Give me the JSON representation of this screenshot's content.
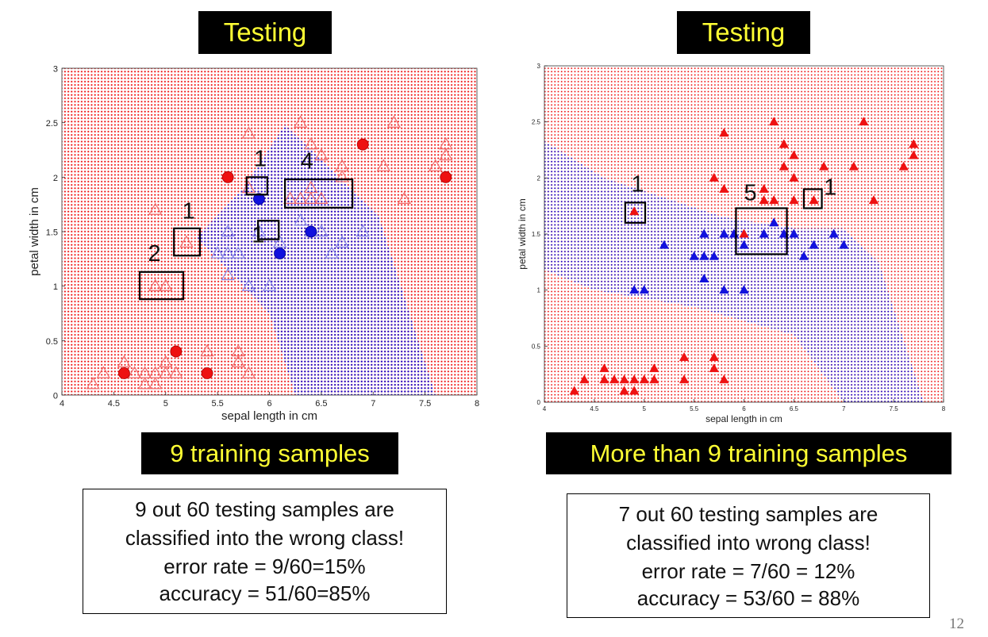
{
  "left_panel": {
    "title": "Testing",
    "caption": "9 training samples",
    "note_lines": [
      "9 out 60 testing samples are",
      "classified into the wrong class!",
      "error rate = 9/60=15%",
      "accuracy = 51/60=85%"
    ]
  },
  "right_panel": {
    "title": "Testing",
    "caption": "More than 9 training samples",
    "note_lines": [
      "7 out 60 testing samples are",
      "classified into wrong class!",
      "error rate = 7/60 = 12%",
      "accuracy = 53/60 = 88%"
    ]
  },
  "page_number": "12",
  "colors": {
    "red": "#ee1111",
    "blue": "#1111dd",
    "title_bg": "#000000",
    "title_text": "#ffff33"
  },
  "chart_data": [
    {
      "type": "scatter",
      "xlabel": "sepal length in cm",
      "ylabel": "petal width in cm",
      "xlim": [
        4,
        8
      ],
      "ylim": [
        0,
        3
      ],
      "xticks": [
        "4",
        "4.5",
        "5",
        "5.5",
        "6",
        "6.5",
        "7",
        "7.5",
        "8"
      ],
      "yticks": [
        "0",
        "0.5",
        "1",
        "1.5",
        "2",
        "2.5",
        "3"
      ],
      "blue_region": [
        [
          6.15,
          2.48
        ],
        [
          7.05,
          1.65
        ],
        [
          7.6,
          0
        ],
        [
          6.25,
          0
        ],
        [
          6.0,
          0.75
        ],
        [
          5.3,
          1.45
        ],
        [
          5.75,
          1.9
        ]
      ],
      "training_red": [
        [
          4.6,
          0.2
        ],
        [
          5.1,
          0.4
        ],
        [
          5.4,
          0.2
        ],
        [
          5.6,
          2.0
        ],
        [
          6.9,
          2.3
        ],
        [
          7.7,
          2.0
        ]
      ],
      "training_blue": [
        [
          5.9,
          1.8
        ],
        [
          6.1,
          1.3
        ],
        [
          6.4,
          1.5
        ]
      ],
      "testing_red": [
        [
          4.3,
          0.1
        ],
        [
          4.4,
          0.2
        ],
        [
          4.6,
          0.3
        ],
        [
          4.7,
          0.2
        ],
        [
          4.8,
          0.1
        ],
        [
          4.8,
          0.2
        ],
        [
          4.9,
          0.1
        ],
        [
          4.9,
          0.2
        ],
        [
          5.0,
          0.2
        ],
        [
          5.0,
          0.3
        ],
        [
          5.1,
          0.2
        ],
        [
          5.4,
          0.4
        ],
        [
          5.7,
          0.4
        ],
        [
          5.7,
          0.3
        ],
        [
          5.8,
          0.2
        ],
        [
          4.9,
          1.7
        ],
        [
          5.2,
          1.4
        ],
        [
          4.9,
          1.0
        ],
        [
          5.0,
          1.0
        ],
        [
          5.8,
          1.9
        ],
        [
          5.8,
          2.4
        ],
        [
          6.2,
          1.8
        ],
        [
          6.3,
          1.8
        ],
        [
          6.4,
          1.8
        ],
        [
          6.5,
          1.8
        ],
        [
          6.3,
          2.5
        ],
        [
          6.4,
          2.3
        ],
        [
          6.5,
          2.2
        ],
        [
          6.7,
          2.1
        ],
        [
          6.4,
          1.9
        ],
        [
          7.2,
          2.5
        ],
        [
          7.1,
          2.1
        ],
        [
          7.3,
          1.8
        ],
        [
          7.7,
          2.3
        ],
        [
          7.6,
          2.1
        ],
        [
          7.7,
          2.2
        ],
        [
          6.7,
          2.0
        ]
      ],
      "testing_blue": [
        [
          5.5,
          1.3
        ],
        [
          5.6,
          1.3
        ],
        [
          5.7,
          1.3
        ],
        [
          5.6,
          1.5
        ],
        [
          5.6,
          1.1
        ],
        [
          5.8,
          1.0
        ],
        [
          6.0,
          1.0
        ],
        [
          6.1,
          1.4
        ],
        [
          6.3,
          1.6
        ],
        [
          6.4,
          1.5
        ],
        [
          6.5,
          1.5
        ],
        [
          6.6,
          1.3
        ],
        [
          6.7,
          1.4
        ],
        [
          6.9,
          1.5
        ],
        [
          5.9,
          1.5
        ]
      ],
      "annotations": [
        {
          "label": "1",
          "box": [
            5.78,
            5.98,
            1.84,
            2.0
          ],
          "label_at": [
            5.85,
            2.1
          ]
        },
        {
          "label": "4",
          "box": [
            6.15,
            6.8,
            1.72,
            1.98
          ],
          "label_at": [
            6.3,
            2.08
          ]
        },
        {
          "label": "1",
          "box": [
            5.08,
            5.33,
            1.28,
            1.53
          ],
          "label_at": [
            5.16,
            1.62
          ]
        },
        {
          "label": "1",
          "box": [
            5.89,
            6.09,
            1.43,
            1.6
          ],
          "label_at": [
            5.83,
            1.4
          ]
        },
        {
          "label": "2",
          "box": [
            4.75,
            5.17,
            0.88,
            1.13
          ],
          "label_at": [
            4.83,
            1.23
          ]
        }
      ]
    },
    {
      "type": "scatter",
      "xlabel": "sepal length in cm",
      "ylabel": "petal width in cm",
      "xlim": [
        4,
        8
      ],
      "ylim": [
        0,
        3
      ],
      "xticks": [
        "4",
        "4.5",
        "5",
        "5.5",
        "6",
        "6.5",
        "7",
        "7.5",
        "8"
      ],
      "yticks": [
        "0",
        "0.5",
        "1",
        "1.5",
        "2",
        "2.5",
        "3"
      ],
      "blue_region": [
        [
          4.0,
          2.33
        ],
        [
          4.6,
          2.0
        ],
        [
          5.8,
          1.65
        ],
        [
          6.5,
          1.55
        ],
        [
          7.0,
          1.55
        ],
        [
          7.35,
          1.25
        ],
        [
          7.8,
          0
        ],
        [
          7.0,
          0
        ],
        [
          6.5,
          0.6
        ],
        [
          5.5,
          0.85
        ],
        [
          4.5,
          1.0
        ],
        [
          4.0,
          1.18
        ]
      ],
      "testing_red": [
        [
          4.3,
          0.1
        ],
        [
          4.4,
          0.2
        ],
        [
          4.6,
          0.2
        ],
        [
          4.6,
          0.3
        ],
        [
          4.7,
          0.2
        ],
        [
          4.8,
          0.2
        ],
        [
          4.8,
          0.1
        ],
        [
          4.9,
          0.1
        ],
        [
          4.9,
          0.2
        ],
        [
          5.0,
          0.2
        ],
        [
          5.1,
          0.2
        ],
        [
          5.1,
          0.3
        ],
        [
          5.4,
          0.2
        ],
        [
          5.4,
          0.4
        ],
        [
          5.7,
          0.4
        ],
        [
          5.7,
          0.3
        ],
        [
          5.8,
          0.2
        ],
        [
          4.9,
          1.7
        ],
        [
          6.0,
          1.5
        ],
        [
          6.7,
          1.8
        ],
        [
          5.8,
          2.4
        ],
        [
          5.7,
          2.0
        ],
        [
          5.8,
          1.9
        ],
        [
          6.2,
          1.8
        ],
        [
          6.3,
          1.8
        ],
        [
          6.5,
          1.8
        ],
        [
          6.2,
          1.9
        ],
        [
          6.3,
          2.5
        ],
        [
          6.4,
          2.3
        ],
        [
          6.4,
          2.1
        ],
        [
          6.5,
          2.0
        ],
        [
          6.5,
          2.2
        ],
        [
          6.8,
          2.1
        ],
        [
          7.1,
          2.1
        ],
        [
          7.2,
          2.5
        ],
        [
          7.3,
          1.8
        ],
        [
          7.6,
          2.1
        ],
        [
          7.7,
          2.2
        ],
        [
          7.7,
          2.3
        ]
      ],
      "testing_blue": [
        [
          4.9,
          1.0
        ],
        [
          5.0,
          1.0
        ],
        [
          5.2,
          1.4
        ],
        [
          5.5,
          1.3
        ],
        [
          5.6,
          1.3
        ],
        [
          5.7,
          1.3
        ],
        [
          5.6,
          1.5
        ],
        [
          5.6,
          1.1
        ],
        [
          5.8,
          1.0
        ],
        [
          6.0,
          1.0
        ],
        [
          5.8,
          1.5
        ],
        [
          6.0,
          1.4
        ],
        [
          6.2,
          1.5
        ],
        [
          6.3,
          1.6
        ],
        [
          6.4,
          1.5
        ],
        [
          6.5,
          1.5
        ],
        [
          6.6,
          1.3
        ],
        [
          6.7,
          1.4
        ],
        [
          6.9,
          1.5
        ],
        [
          7.0,
          1.4
        ],
        [
          5.9,
          1.5
        ]
      ],
      "annotations": [
        {
          "label": "1",
          "box": [
            4.81,
            5.01,
            1.6,
            1.78
          ],
          "label_at": [
            4.87,
            1.88
          ]
        },
        {
          "label": "5",
          "box": [
            5.92,
            6.43,
            1.32,
            1.73
          ],
          "label_at": [
            6.0,
            1.8
          ]
        },
        {
          "label": "1",
          "box": [
            6.6,
            6.78,
            1.73,
            1.9
          ],
          "label_at": [
            6.8,
            1.85
          ]
        }
      ]
    }
  ]
}
